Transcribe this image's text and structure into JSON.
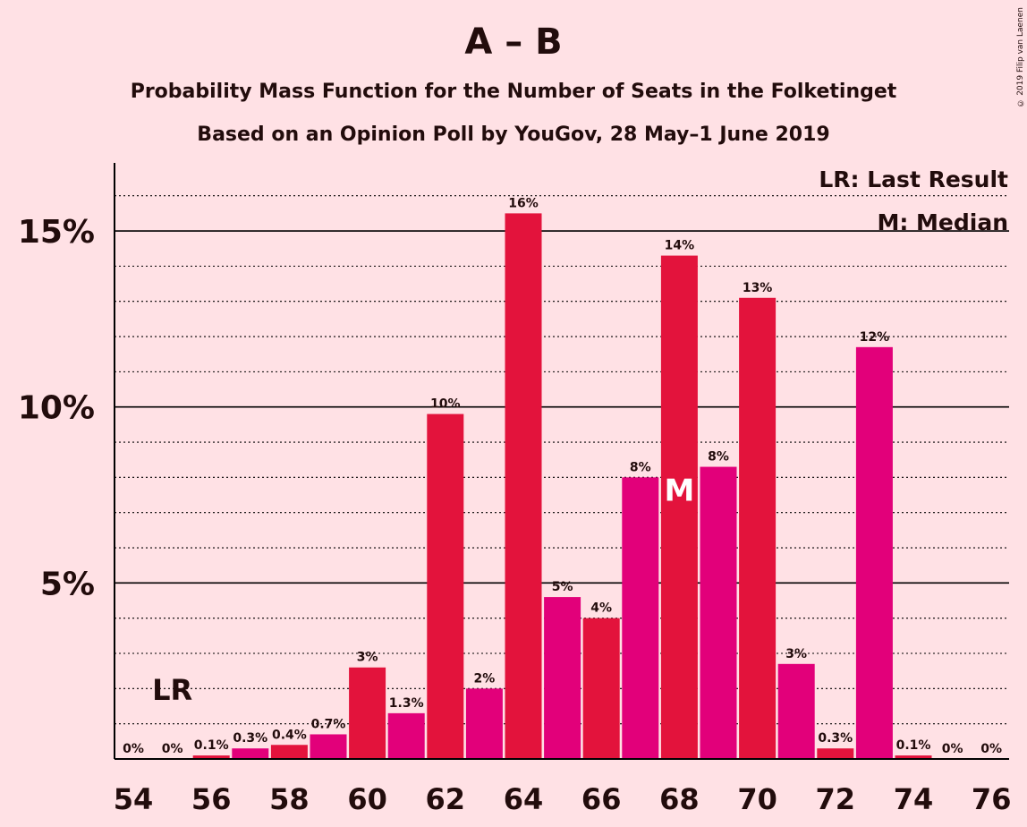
{
  "chart_data": {
    "type": "bar",
    "title": "A – B",
    "subtitle_1": "Probability Mass Function for the Number of Seats in the Folketinget",
    "subtitle_2": "Based on an Opinion Poll by YouGov, 28 May–1 June 2019",
    "copyright": "© 2019 Filip van Laenen",
    "x": [
      54,
      55,
      56,
      57,
      58,
      59,
      60,
      61,
      62,
      63,
      64,
      65,
      66,
      67,
      68,
      69,
      70,
      71,
      72,
      73,
      74,
      75,
      76
    ],
    "values": [
      0,
      0,
      0.1,
      0.3,
      0.4,
      0.7,
      2.6,
      1.3,
      9.8,
      2.0,
      15.5,
      4.6,
      4.0,
      8.0,
      14.3,
      8.3,
      13.1,
      2.7,
      0.3,
      11.7,
      0.1,
      0,
      0
    ],
    "labels": [
      "0%",
      "0%",
      "0.1%",
      "0.3%",
      "0.4%",
      "0.7%",
      "3%",
      "1.3%",
      "10%",
      "2%",
      "16%",
      "5%",
      "4%",
      "8%",
      "14%",
      "8%",
      "13%",
      "3%",
      "0.3%",
      "12%",
      "0.1%",
      "0%",
      "0%"
    ],
    "x_tick_labels": [
      "54",
      "56",
      "58",
      "60",
      "62",
      "64",
      "66",
      "68",
      "70",
      "72",
      "74",
      "76"
    ],
    "y_tick_labels": [
      "5%",
      "10%",
      "15%"
    ],
    "ylim": [
      0,
      17
    ],
    "last_result_seat": 55,
    "last_result_marker": "LR",
    "median_seat": 68,
    "median_marker": "M",
    "legend": [
      "LR: Last Result",
      "M: Median"
    ],
    "legend_position": "top-right",
    "colors": {
      "even": "#E3133C",
      "odd": "#E2007A",
      "grid": "#000000",
      "text": "#220c0c"
    }
  }
}
